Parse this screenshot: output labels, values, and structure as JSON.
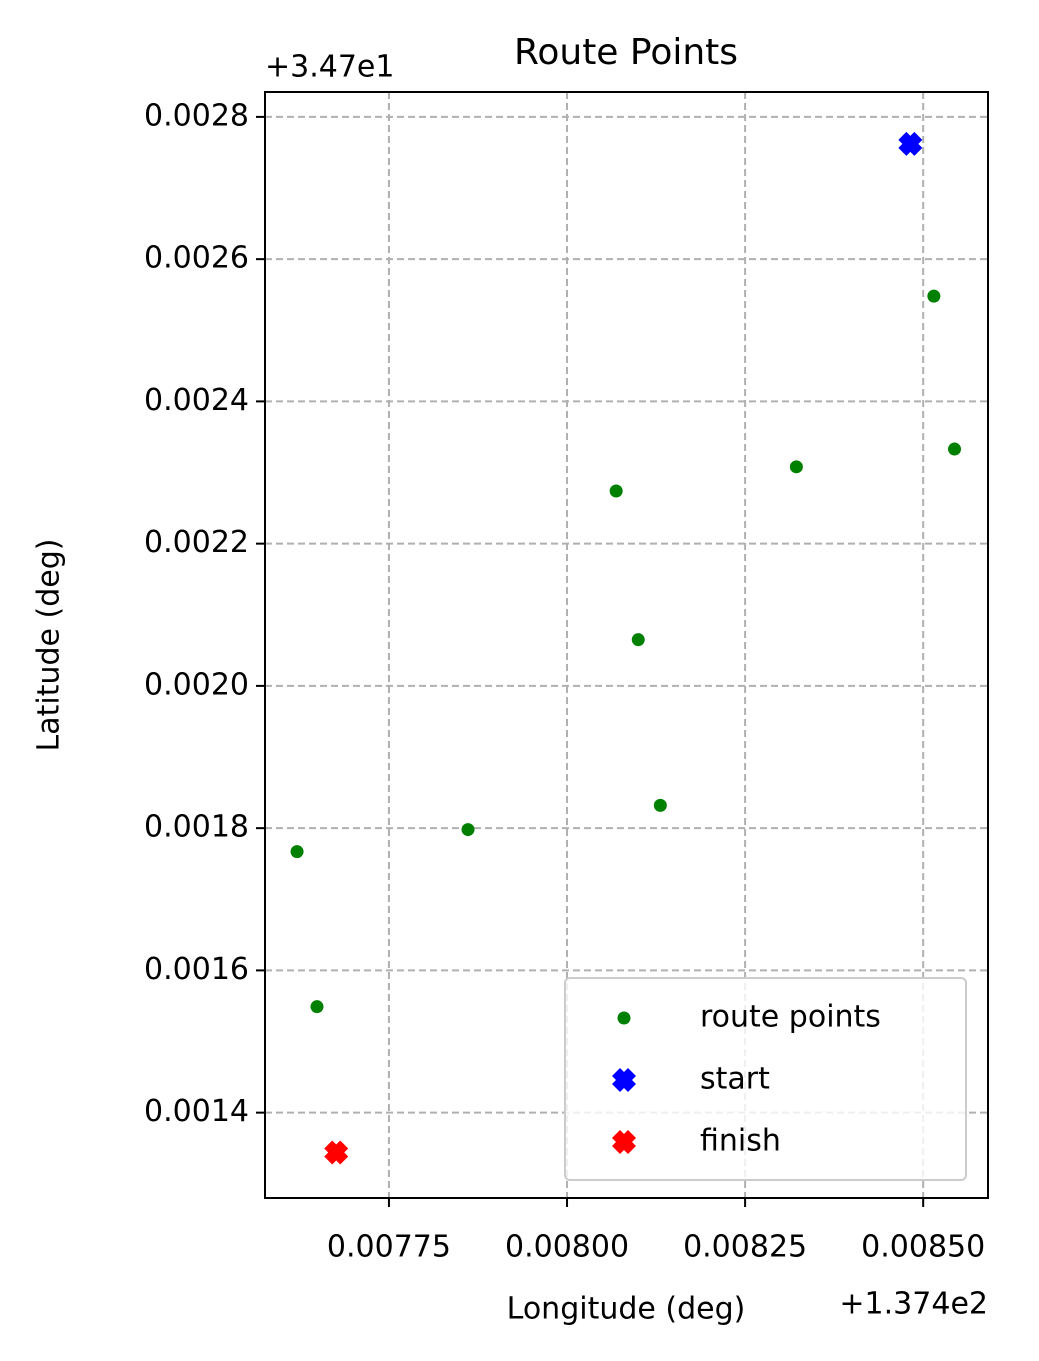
{
  "chart_data": {
    "type": "scatter",
    "title": "Route Points",
    "x_label": "Longitude (deg)",
    "y_label": "Latitude (deg)",
    "x_offset": "+1.374e2",
    "y_offset": "+3.47e1",
    "xlim": [
      0.007576,
      0.008591
    ],
    "ylim": [
      0.00128,
      0.002835
    ],
    "xticks": [
      0.00775,
      {
        "value": 0.008,
        "label": "0.00800"
      },
      0.00825,
      {
        "value": 0.0085,
        "label": "0.00850"
      }
    ],
    "yticks": [
      0.0014,
      0.0016,
      0.0018,
      {
        "value": 0.002,
        "label": "0.0020"
      },
      0.0022,
      0.0024,
      0.0026,
      0.0028
    ],
    "grid": true,
    "legend_position": "lower right",
    "series": [
      {
        "name": "route points",
        "color": "#008000",
        "marker": "o",
        "x": [
          0.007621,
          0.007649,
          0.007861,
          0.008069,
          0.0081,
          0.008131,
          0.008322,
          0.008515,
          0.008544
        ],
        "y": [
          0.001767,
          0.001549,
          0.001798,
          0.002274,
          0.002065,
          0.001832,
          0.002308,
          0.002548,
          0.002333
        ]
      },
      {
        "name": "start",
        "color": "#0000ff",
        "marker": "X",
        "x": [
          0.008482
        ],
        "y": [
          0.002762
        ]
      },
      {
        "name": "finish",
        "color": "#ff0000",
        "marker": "X",
        "x": [
          0.007676
        ],
        "y": [
          0.001344
        ]
      }
    ]
  }
}
